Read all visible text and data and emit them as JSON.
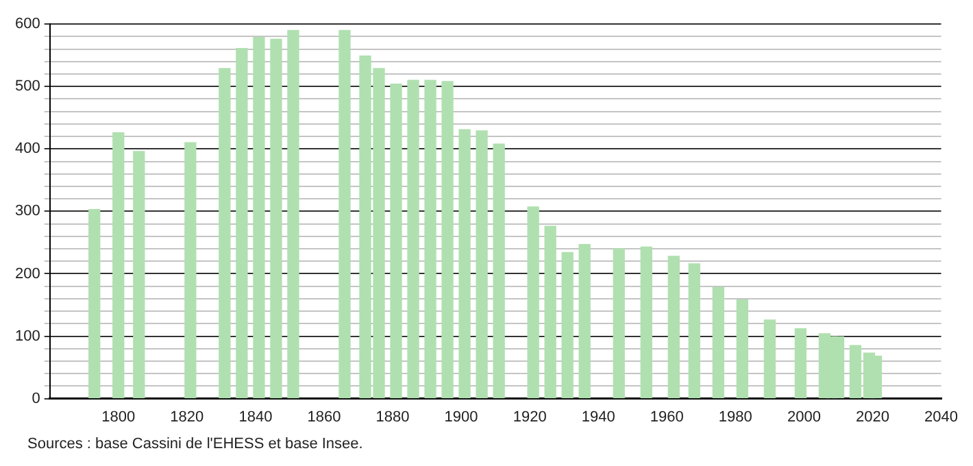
{
  "chart_data": {
    "type": "bar",
    "x": [
      1793,
      1800,
      1806,
      1821,
      1831,
      1836,
      1841,
      1846,
      1851,
      1866,
      1872,
      1876,
      1881,
      1886,
      1891,
      1896,
      1901,
      1906,
      1911,
      1921,
      1926,
      1931,
      1936,
      1946,
      1954,
      1962,
      1968,
      1975,
      1982,
      1990,
      1999,
      2006,
      2008,
      2010,
      2015,
      2019,
      2021
    ],
    "values": [
      303,
      426,
      396,
      410,
      529,
      561,
      579,
      576,
      590,
      590,
      549,
      529,
      504,
      510,
      510,
      508,
      431,
      429,
      408,
      307,
      276,
      234,
      247,
      240,
      243,
      228,
      216,
      178,
      158,
      126,
      112,
      104,
      99,
      99,
      85,
      73,
      68
    ],
    "color": "#b0e0b0",
    "xlim": [
      1780,
      2040
    ],
    "xticks": [
      1800,
      1820,
      1840,
      1860,
      1880,
      1900,
      1920,
      1940,
      1960,
      1980,
      2000,
      2020,
      2040
    ],
    "ylim": [
      0,
      600
    ],
    "yticks": [
      0,
      {
        "value": 20,
        "label": null
      },
      {
        "value": 40,
        "label": null
      },
      {
        "value": 60,
        "label": null
      },
      {
        "value": 80,
        "label": null
      },
      100,
      {
        "value": 120,
        "label": null
      },
      {
        "value": 140,
        "label": null
      },
      {
        "value": 160,
        "label": null
      },
      {
        "value": 180,
        "label": null
      },
      200,
      {
        "value": 220,
        "label": null
      },
      {
        "value": 240,
        "label": null
      },
      {
        "value": 260,
        "label": null
      },
      {
        "value": 280,
        "label": null
      },
      300,
      {
        "value": 320,
        "label": null
      },
      {
        "value": 340,
        "label": null
      },
      {
        "value": 360,
        "label": null
      },
      {
        "value": 380,
        "label": null
      },
      400,
      {
        "value": 420,
        "label": null
      },
      {
        "value": 440,
        "label": null
      },
      {
        "value": 460,
        "label": null
      },
      {
        "value": 480,
        "label": null
      },
      500,
      {
        "value": 520,
        "label": null
      },
      {
        "value": 540,
        "label": null
      },
      {
        "value": 560,
        "label": null
      },
      {
        "value": 580,
        "label": null
      },
      600
    ],
    "grid": "y",
    "legend": false,
    "annotations": [
      "Sources : base Cassini de l'EHESS et base Insee."
    ]
  }
}
